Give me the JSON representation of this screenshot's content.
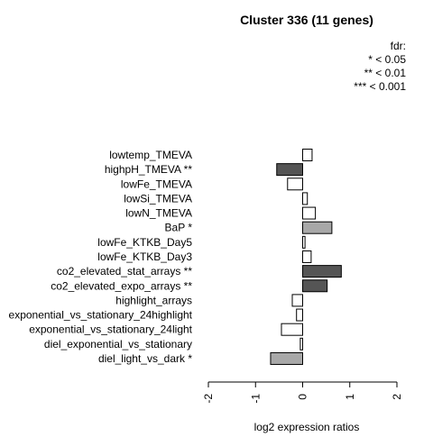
{
  "chart_data": {
    "type": "bar",
    "orientation": "horizontal",
    "title": "Cluster 336 (11 genes)",
    "xlabel": "log2 expression ratios",
    "xlim": [
      -2,
      2
    ],
    "xticks": [
      "-2",
      "-1",
      "0",
      "1",
      "2"
    ],
    "legend": [
      "fdr:",
      "* < 0.05",
      "** < 0.01",
      "*** < 0.001"
    ],
    "categories": [
      "lowtemp_TMEVA",
      "highpH_TMEVA **",
      "lowFe_TMEVA",
      "lowSi_TMEVA",
      "lowN_TMEVA",
      "BaP *",
      "lowFe_KTKB_Day5",
      "lowFe_KTKB_Day3",
      "co2_elevated_stat_arrays **",
      "co2_elevated_expo_arrays **",
      "highlight_arrays",
      "exponential_vs_stationary_24highlight",
      "exponential_vs_stationary_24light",
      "diel_exponential_vs_stationary",
      "diel_light_vs_dark *"
    ],
    "values": [
      0.2,
      -0.55,
      -0.32,
      0.1,
      0.27,
      0.62,
      0.05,
      0.18,
      0.82,
      0.52,
      -0.22,
      -0.13,
      -0.45,
      -0.05,
      -0.68
    ],
    "bar_colors": [
      "#ffffff",
      "#555555",
      "#ffffff",
      "#ffffff",
      "#ffffff",
      "#a8a8a8",
      "#ffffff",
      "#ffffff",
      "#555555",
      "#555555",
      "#ffffff",
      "#ffffff",
      "#ffffff",
      "#ffffff",
      "#a8a8a8"
    ]
  }
}
